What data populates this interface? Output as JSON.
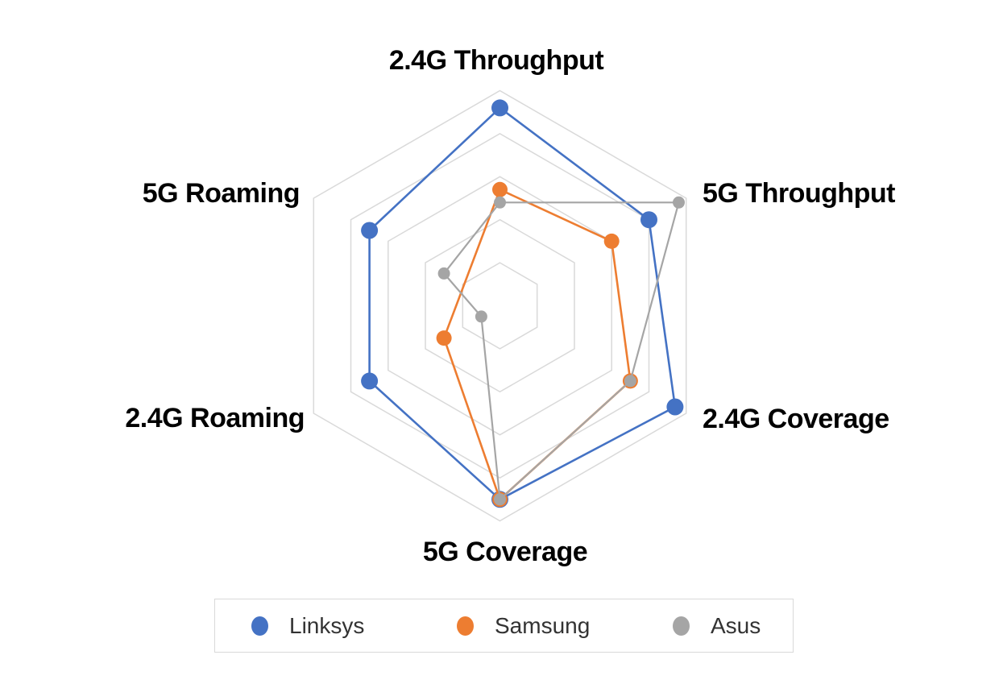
{
  "chart_data": {
    "type": "radar",
    "categories": [
      "2.4G Throughput",
      "5G Throughput",
      "2.4G Coverage",
      "5G Coverage",
      "2.4G Roaming",
      "5G Roaming"
    ],
    "axis": {
      "min": 0,
      "max": 5,
      "ring_interval": 1,
      "rings": 5,
      "shape": "hexagon",
      "spokes": false,
      "tick_labels_visible": false,
      "gridline_color": "#d9d9d9"
    },
    "series": [
      {
        "name": "Linksys",
        "color": "#4472c4",
        "marker": "circle",
        "values": [
          4.6,
          4.0,
          4.7,
          4.5,
          3.5,
          3.5
        ]
      },
      {
        "name": "Samsung",
        "color": "#ed7d31",
        "marker": "circle",
        "values": [
          2.7,
          3.0,
          3.5,
          4.5,
          1.5,
          null
        ],
        "note": "5G Roaming point has no marker; line connects 2.4G Roaming directly to 2.4G Throughput"
      },
      {
        "name": "Asus",
        "color": "#a5a5a5",
        "marker": "circle",
        "values": [
          2.4,
          4.8,
          3.5,
          4.5,
          0.5,
          1.5
        ]
      }
    ],
    "legend": {
      "position": "bottom",
      "entries": [
        "Linksys",
        "Samsung",
        "Asus"
      ]
    }
  }
}
